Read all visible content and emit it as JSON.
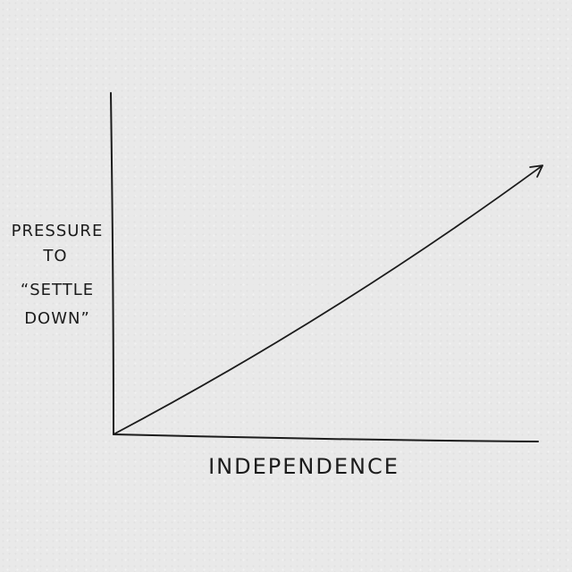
{
  "chart_data": {
    "type": "line",
    "title": "",
    "xlabel": "INDEPENDENCE",
    "ylabel_lines": [
      "PRESSURE",
      "TO",
      "“SETTLE",
      "DOWN”"
    ],
    "grid": false,
    "legend": "none",
    "axes_end_arrow": true,
    "series": [
      {
        "x": [
          0,
          1
        ],
        "y": [
          0,
          0.8
        ]
      }
    ],
    "xlim": [
      0,
      1
    ],
    "ylim": [
      0,
      1
    ],
    "colors": {
      "ink": "#1c1c1c",
      "paper": "#e9e9e9"
    }
  }
}
